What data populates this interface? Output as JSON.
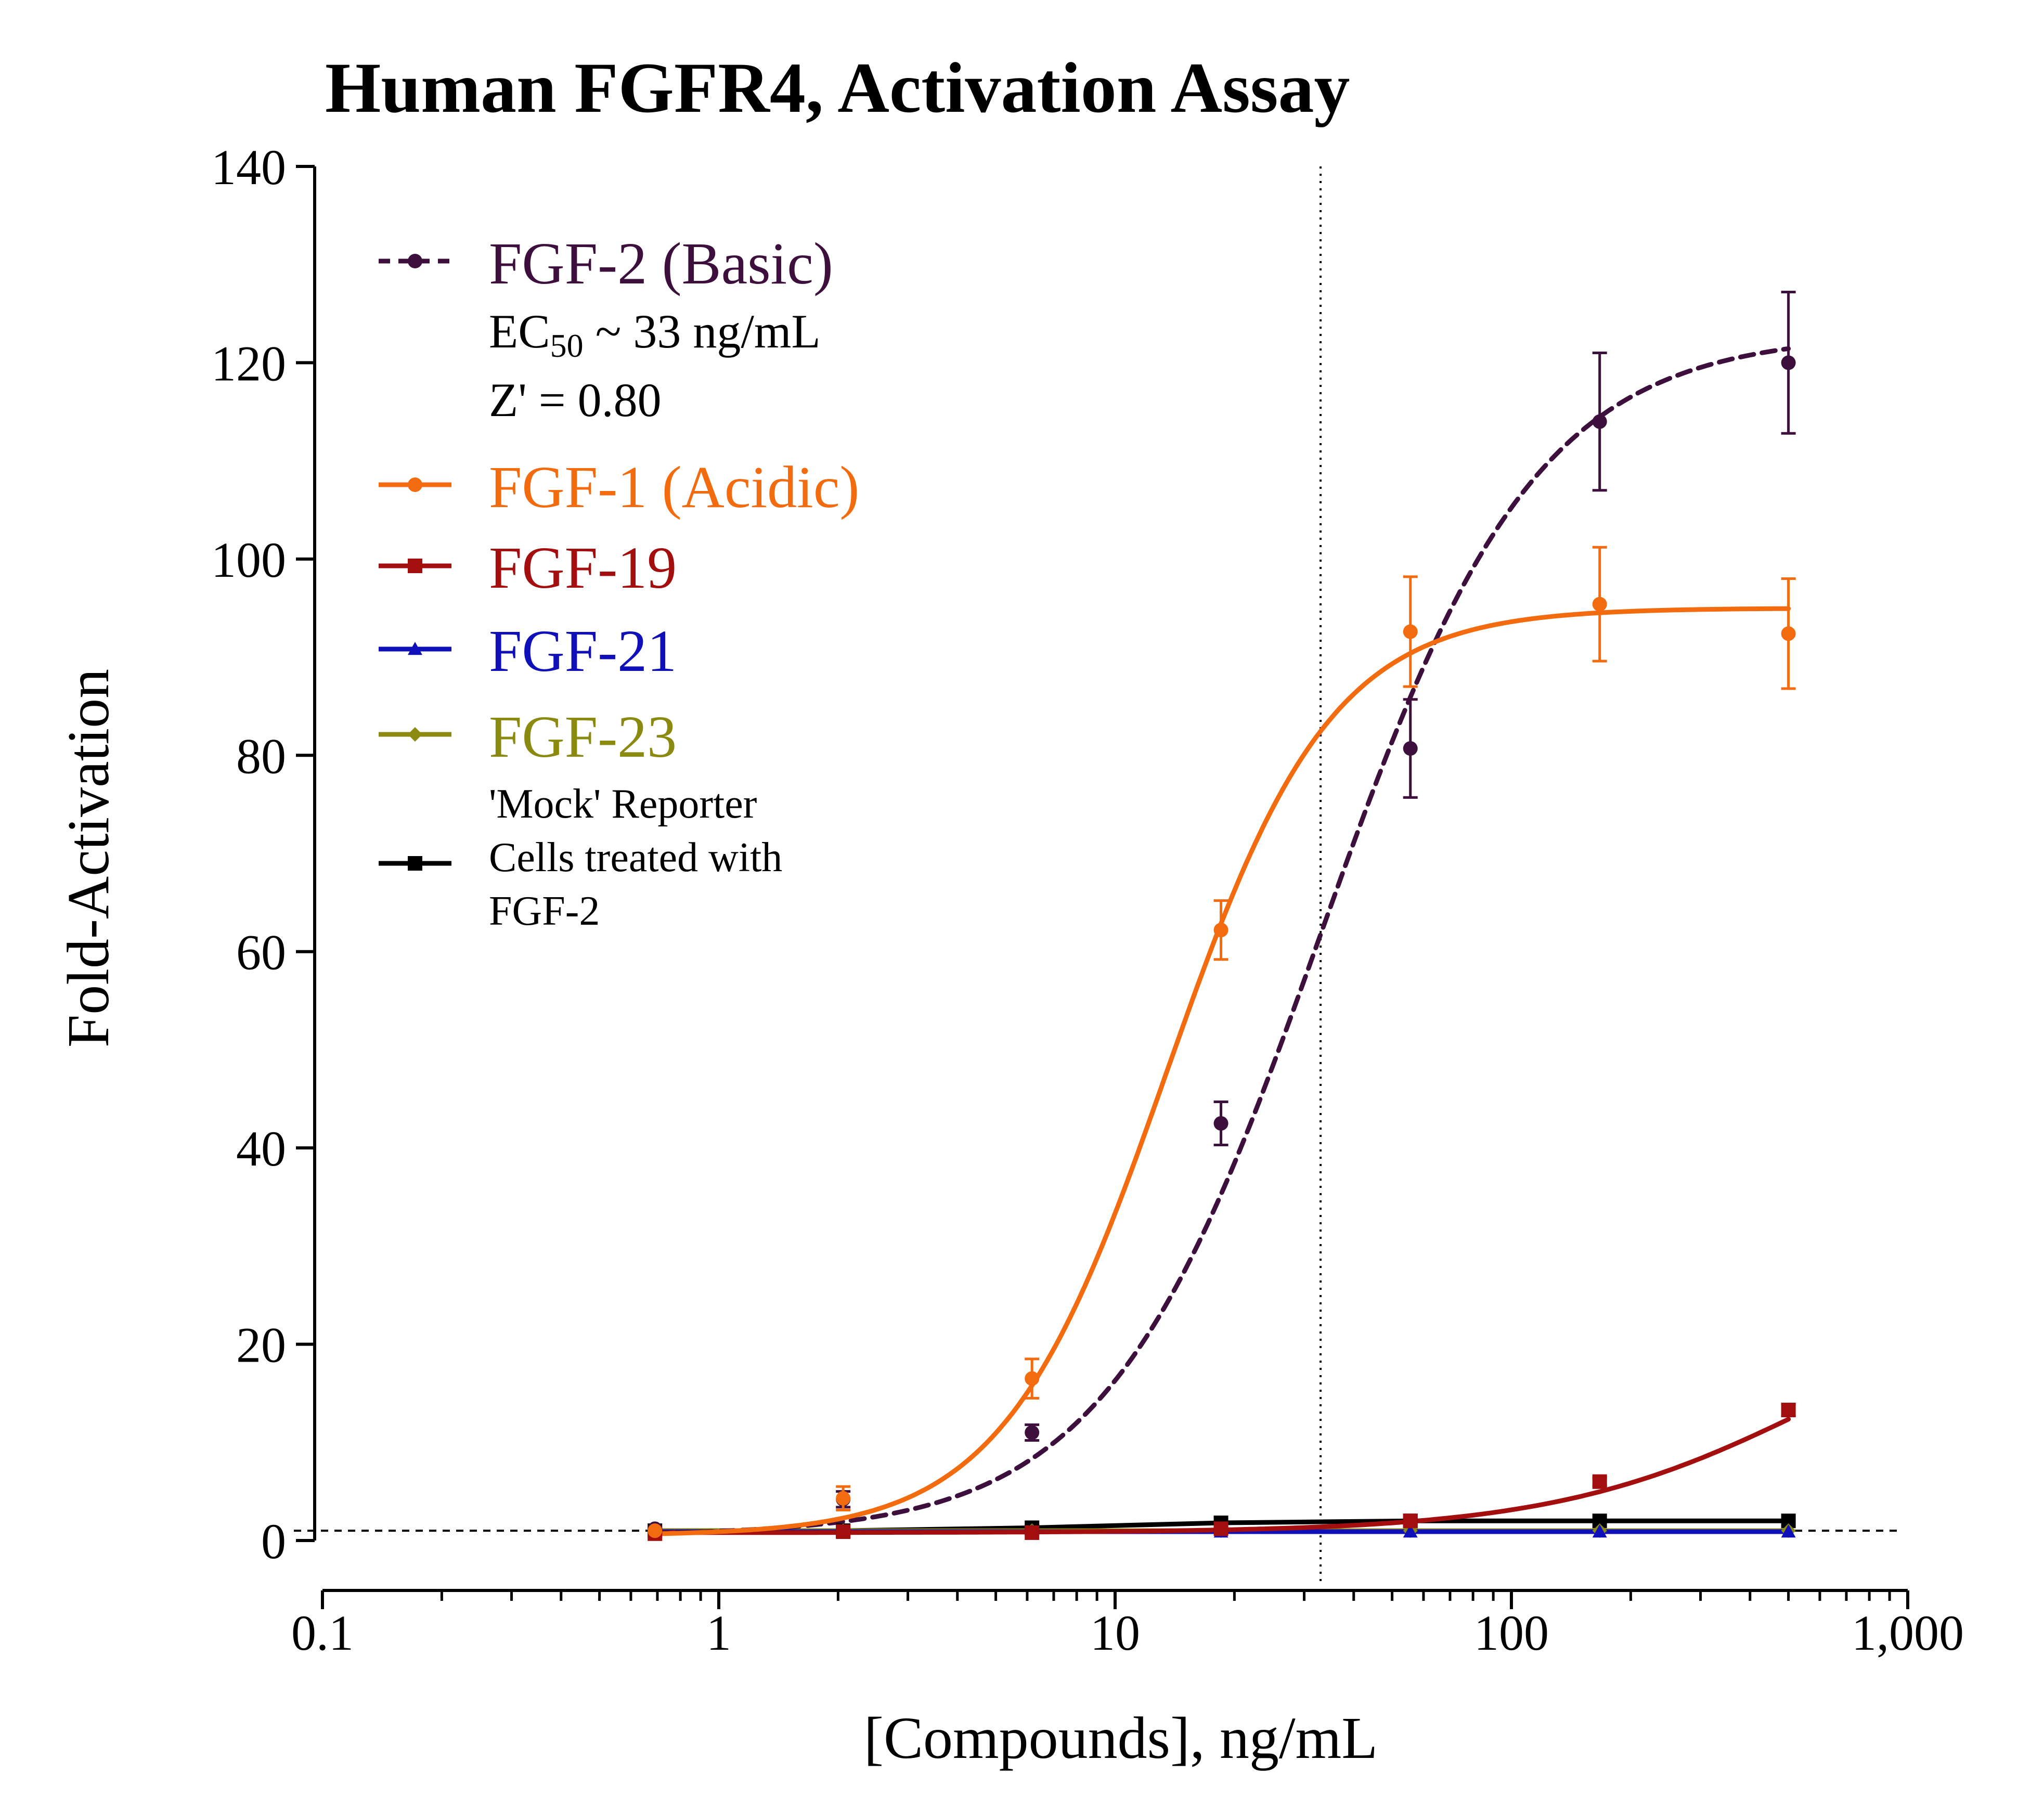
{
  "chart_data": {
    "type": "line",
    "title": "Human FGFR4, Activation Assay",
    "xlabel": "[Compounds], ng/mL",
    "ylabel": "Fold-Activation",
    "xscale": "log",
    "xlim": [
      0.1,
      1000
    ],
    "ylim": [
      0,
      140
    ],
    "x_ticks": [
      {
        "value": 0.1,
        "label": "0.1"
      },
      {
        "value": 1,
        "label": "1"
      },
      {
        "value": 10,
        "label": "10"
      },
      {
        "value": 100,
        "label": "100"
      },
      {
        "value": 1000,
        "label": "1,000"
      }
    ],
    "y_ticks": [
      {
        "value": 0,
        "label": "0"
      },
      {
        "value": 20,
        "label": "20"
      },
      {
        "value": 40,
        "label": "40"
      },
      {
        "value": 60,
        "label": "60"
      },
      {
        "value": 80,
        "label": "80"
      },
      {
        "value": 100,
        "label": "100"
      },
      {
        "value": 120,
        "label": "120"
      },
      {
        "value": 140,
        "label": "140"
      }
    ],
    "reference_lines": {
      "ec50_x": 33,
      "baseline_y": 1
    },
    "series": [
      {
        "name": "FGF-2 (Basic)",
        "color": "#3d0f3d",
        "dashed": true,
        "marker": "circle",
        "x": [
          0.69,
          2.06,
          6.17,
          18.5,
          55.6,
          167,
          500
        ],
        "y": [
          1.2,
          4.2,
          11.0,
          42.5,
          80.7,
          114.0,
          120.0
        ],
        "err": [
          0.3,
          0.8,
          0.8,
          2.2,
          5.0,
          7.0,
          7.2
        ],
        "fit": {
          "bottom": 0.5,
          "top": 123,
          "ec50": 33,
          "hill": 1.6
        }
      },
      {
        "name": "FGF-1 (Acidic)",
        "color": "#f26b0f",
        "dashed": false,
        "marker": "circle",
        "x": [
          0.69,
          2.06,
          6.17,
          18.5,
          55.6,
          167,
          500
        ],
        "y": [
          1.0,
          4.3,
          16.5,
          62.2,
          92.6,
          95.4,
          92.4
        ],
        "err": [
          0.3,
          1.2,
          2.0,
          3.0,
          5.6,
          5.8,
          5.6
        ],
        "fit": {
          "bottom": 0.5,
          "top": 95,
          "ec50": 13.5,
          "hill": 2.1
        }
      },
      {
        "name": "FGF-19",
        "color": "#a30f0f",
        "dashed": false,
        "marker": "square",
        "x": [
          0.69,
          2.06,
          6.17,
          18.5,
          55.6,
          167,
          500
        ],
        "y": [
          0.7,
          0.9,
          0.8,
          1.2,
          2.0,
          6.0,
          13.3
        ],
        "err": [
          0.1,
          0.1,
          0.1,
          0.1,
          0.2,
          0.4,
          0.6
        ],
        "fit": {
          "bottom": 0.8,
          "top": 27,
          "ec50": 600,
          "hill": 1.3
        }
      },
      {
        "name": "FGF-21",
        "color": "#1010b8",
        "dashed": false,
        "marker": "triangle",
        "x": [
          0.69,
          2.06,
          6.17,
          18.5,
          55.6,
          167,
          500
        ],
        "y": [
          0.9,
          0.9,
          0.9,
          0.9,
          0.9,
          0.9,
          0.9
        ],
        "err": [
          0.1,
          0.1,
          0.1,
          0.1,
          0.1,
          0.1,
          0.1
        ],
        "fit": null
      },
      {
        "name": "FGF-23",
        "color": "#8a8a10",
        "dashed": false,
        "marker": "diamond",
        "x": [
          0.69,
          2.06,
          6.17,
          18.5,
          55.6,
          167,
          500
        ],
        "y": [
          1.0,
          1.0,
          1.0,
          1.0,
          1.0,
          1.0,
          1.0
        ],
        "err": [
          0.1,
          0.1,
          0.1,
          0.1,
          0.1,
          0.1,
          0.1
        ],
        "fit": null
      },
      {
        "name": "'Mock' Reporter Cells treated with FGF-2",
        "color": "#000000",
        "dashed": false,
        "marker": "square",
        "x": [
          0.69,
          2.06,
          6.17,
          18.5,
          55.6,
          167,
          500
        ],
        "y": [
          1.0,
          1.0,
          1.3,
          1.8,
          2.0,
          2.0,
          2.0
        ],
        "err": [
          0.1,
          0.1,
          0.1,
          0.2,
          0.2,
          0.2,
          0.2
        ],
        "fit": null
      }
    ],
    "legend": {
      "placement": "top-left",
      "entries": [
        {
          "label": "FGF-2 (Basic)",
          "color": "#3d0f3d",
          "dashed": true,
          "marker": "circle"
        },
        {
          "label": "FGF-1 (Acidic)",
          "color": "#f26b0f",
          "dashed": false,
          "marker": "circle"
        },
        {
          "label": "FGF-19",
          "color": "#a30f0f",
          "dashed": false,
          "marker": "square"
        },
        {
          "label": "FGF-21",
          "color": "#1010b8",
          "dashed": false,
          "marker": "triangle"
        },
        {
          "label": "FGF-23",
          "color": "#8a8a10",
          "dashed": false,
          "marker": "diamond"
        },
        {
          "label": "mock",
          "color": "#000000",
          "dashed": false,
          "marker": "square"
        }
      ],
      "annotations": {
        "ec50_prefix": "EC",
        "ec50_subscript": "50",
        "ec50_suffix": " ~ 33 ng/mL",
        "zprime": "Z' = 0.80",
        "mock_lines": [
          "'Mock' Reporter",
          "Cells treated with",
          "FGF-2"
        ]
      }
    }
  }
}
